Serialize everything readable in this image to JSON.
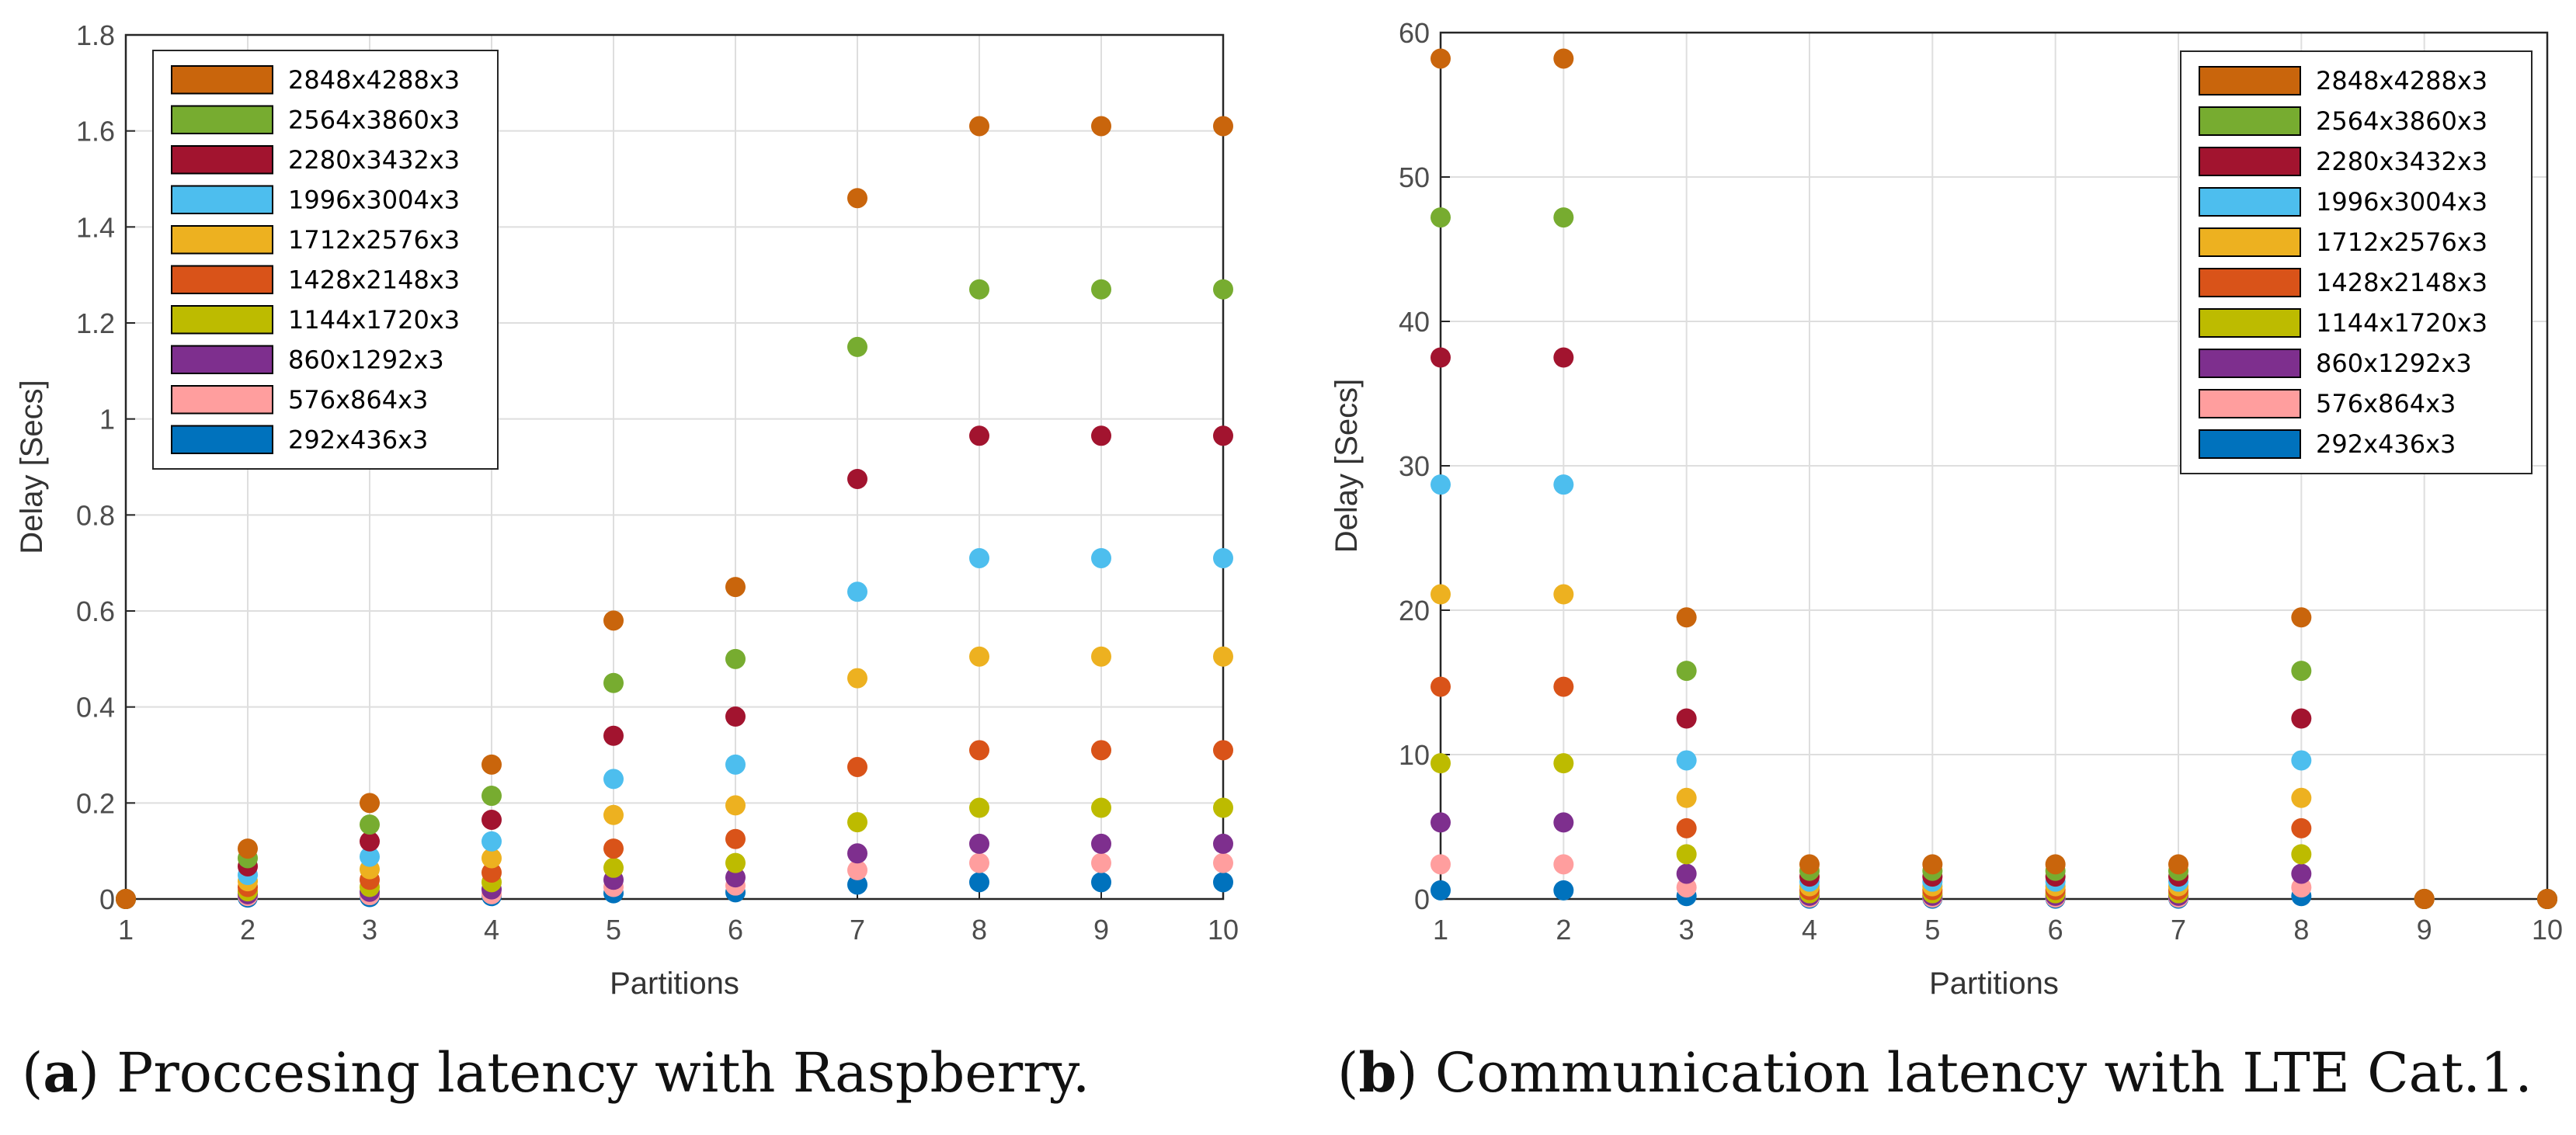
{
  "chart_data": [
    {
      "type": "scatter",
      "id": "a",
      "caption_letter": "a",
      "caption_text": "Proccesing latency with Raspberry.",
      "xlabel": "Partitions",
      "ylabel": "Delay [Secs]",
      "xlim": [
        1,
        10
      ],
      "ylim": [
        0,
        1.8
      ],
      "xticks": [
        "1",
        "2",
        "3",
        "4",
        "5",
        "6",
        "7",
        "8",
        "9",
        "10"
      ],
      "yticks": [
        "0",
        "0.2",
        "0.4",
        "0.6",
        "0.8",
        "1",
        "1.2",
        "1.4",
        "1.6",
        "1.8"
      ],
      "legend_position": "top-left",
      "x": [
        1,
        2,
        3,
        4,
        5,
        6,
        7,
        8,
        9,
        10
      ],
      "series": [
        {
          "name": "2848x4288x3",
          "color": "#c9650c",
          "values": [
            0,
            0.105,
            0.2,
            0.28,
            0.58,
            0.65,
            1.46,
            1.61,
            1.61,
            1.61
          ]
        },
        {
          "name": "2564x3860x3",
          "color": "#77ac30",
          "values": [
            0,
            0.085,
            0.155,
            0.215,
            0.45,
            0.5,
            1.15,
            1.27,
            1.27,
            1.27
          ]
        },
        {
          "name": "2280x3432x3",
          "color": "#a2142f",
          "values": [
            0,
            0.068,
            0.12,
            0.165,
            0.34,
            0.38,
            0.875,
            0.965,
            0.965,
            0.965
          ]
        },
        {
          "name": "1996x3004x3",
          "color": "#4dbeee",
          "values": [
            0,
            0.05,
            0.088,
            0.12,
            0.25,
            0.28,
            0.64,
            0.71,
            0.71,
            0.71
          ]
        },
        {
          "name": "1712x2576x3",
          "color": "#edb120",
          "values": [
            0,
            0.037,
            0.062,
            0.085,
            0.175,
            0.195,
            0.46,
            0.505,
            0.505,
            0.505
          ]
        },
        {
          "name": "1428x2148x3",
          "color": "#d95319",
          "values": [
            0,
            0.025,
            0.04,
            0.055,
            0.105,
            0.125,
            0.275,
            0.31,
            0.31,
            0.31
          ]
        },
        {
          "name": "1144x1720x3",
          "color": "#bdbb00",
          "values": [
            0,
            0.016,
            0.025,
            0.035,
            0.065,
            0.075,
            0.16,
            0.19,
            0.19,
            0.19
          ]
        },
        {
          "name": "860x1292x3",
          "color": "#7e2f8e",
          "values": [
            0,
            0.01,
            0.015,
            0.02,
            0.04,
            0.045,
            0.095,
            0.115,
            0.115,
            0.115
          ]
        },
        {
          "name": "576x864x3",
          "color": "#ff9e9e",
          "values": [
            0,
            0.006,
            0.008,
            0.01,
            0.025,
            0.028,
            0.06,
            0.075,
            0.075,
            0.075
          ]
        },
        {
          "name": "292x436x3",
          "color": "#0072bd",
          "values": [
            0,
            0.003,
            0.004,
            0.006,
            0.012,
            0.014,
            0.03,
            0.035,
            0.035,
            0.035
          ]
        }
      ]
    },
    {
      "type": "scatter",
      "id": "b",
      "caption_letter": "b",
      "caption_text": "Communication latency with LTE Cat.1.",
      "xlabel": "Partitions",
      "ylabel": "Delay [Secs]",
      "xlim": [
        1,
        10
      ],
      "ylim": [
        0,
        60
      ],
      "xticks": [
        "1",
        "2",
        "3",
        "4",
        "5",
        "6",
        "7",
        "8",
        "9",
        "10"
      ],
      "yticks": [
        "0",
        "10",
        "20",
        "30",
        "40",
        "50",
        "60"
      ],
      "legend_position": "top-right",
      "x": [
        1,
        2,
        3,
        4,
        5,
        6,
        7,
        8,
        9,
        10
      ],
      "series": [
        {
          "name": "2848x4288x3",
          "color": "#c9650c",
          "values": [
            58.2,
            58.2,
            19.5,
            2.4,
            2.4,
            2.4,
            2.4,
            19.5,
            0,
            0
          ]
        },
        {
          "name": "2564x3860x3",
          "color": "#77ac30",
          "values": [
            47.2,
            47.2,
            15.8,
            1.95,
            1.95,
            1.95,
            1.95,
            15.8,
            0,
            0
          ]
        },
        {
          "name": "2280x3432x3",
          "color": "#a2142f",
          "values": [
            37.5,
            37.5,
            12.5,
            1.55,
            1.55,
            1.55,
            1.55,
            12.5,
            0,
            0
          ]
        },
        {
          "name": "1996x3004x3",
          "color": "#4dbeee",
          "values": [
            28.7,
            28.7,
            9.6,
            1.2,
            1.2,
            1.2,
            1.2,
            9.6,
            0,
            0
          ]
        },
        {
          "name": "1712x2576x3",
          "color": "#edb120",
          "values": [
            21.1,
            21.1,
            7.0,
            0.88,
            0.88,
            0.88,
            0.88,
            7.0,
            0,
            0
          ]
        },
        {
          "name": "1428x2148x3",
          "color": "#d95319",
          "values": [
            14.7,
            14.7,
            4.9,
            0.62,
            0.62,
            0.62,
            0.62,
            4.9,
            0,
            0
          ]
        },
        {
          "name": "1144x1720x3",
          "color": "#bdbb00",
          "values": [
            9.4,
            9.4,
            3.1,
            0.4,
            0.4,
            0.4,
            0.4,
            3.1,
            0,
            0
          ]
        },
        {
          "name": "860x1292x3",
          "color": "#7e2f8e",
          "values": [
            5.3,
            5.3,
            1.75,
            0.22,
            0.22,
            0.22,
            0.22,
            1.75,
            0,
            0
          ]
        },
        {
          "name": "576x864x3",
          "color": "#ff9e9e",
          "values": [
            2.4,
            2.4,
            0.8,
            0.1,
            0.1,
            0.1,
            0.1,
            0.8,
            0,
            0
          ]
        },
        {
          "name": "292x436x3",
          "color": "#0072bd",
          "values": [
            0.6,
            0.6,
            0.2,
            0.03,
            0.03,
            0.03,
            0.03,
            0.2,
            0,
            0
          ]
        }
      ]
    }
  ]
}
